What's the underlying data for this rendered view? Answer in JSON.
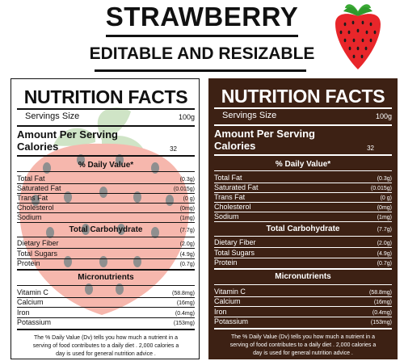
{
  "header": {
    "title": "STRAWBERRY",
    "subtitle": "EDITABLE AND RESIZABLE"
  },
  "colors": {
    "white_label_bg": "#ffffff",
    "brown_label_bg": "#3d2114",
    "strawberry_red": "#e8262a",
    "leaf_green": "#3aaa35",
    "faded_berry": "#f6b7ad",
    "faded_leaf": "#cfe4c6"
  },
  "icons": [
    "strawberry-logo",
    "strawberry-watermark"
  ],
  "label": {
    "heading": "NUTRITION FACTS",
    "serving_label": "Servings Size",
    "serving_value": "100g",
    "amount_per_serving": "Amount Per Serving",
    "calories_label": "Calories",
    "calories_value": "32",
    "daily_value_heading": "% Daily Value*",
    "fats": [
      {
        "name": "Total Fat",
        "value": "(0.3g)"
      },
      {
        "name": "Saturated Fat",
        "value": "(0.015g)"
      },
      {
        "name": "Trans Fat",
        "value": "(0 g)"
      },
      {
        "name": "Cholesterol",
        "value": "(0mg)"
      },
      {
        "name": "Sodium",
        "value": "(1mg)"
      }
    ],
    "carbs_heading": "Total Carbohydrate",
    "carbs_value": "(7.7g)",
    "carbs": [
      {
        "name": "Dietary Fiber",
        "value": "(2.0g)"
      },
      {
        "name": "Total Sugars",
        "value": "(4.9g)"
      },
      {
        "name": "Protein",
        "value": "(0.7g)"
      }
    ],
    "micro_heading": "Micronutrients",
    "micro": [
      {
        "name": "Vitamin C",
        "value": "(58.8mg)"
      },
      {
        "name": "Calcium",
        "value": "(16mg)"
      },
      {
        "name": "Iron",
        "value": "(0.4mg)"
      },
      {
        "name": "Potassium",
        "value": "(153mg)"
      }
    ],
    "footnote_lines": [
      "The % Daily Value (Dv) tells you how much a nutrient in a",
      "serving of food contributes to a daily diet . 2,000 calories a",
      "day is used for general nutrition advice ."
    ]
  }
}
